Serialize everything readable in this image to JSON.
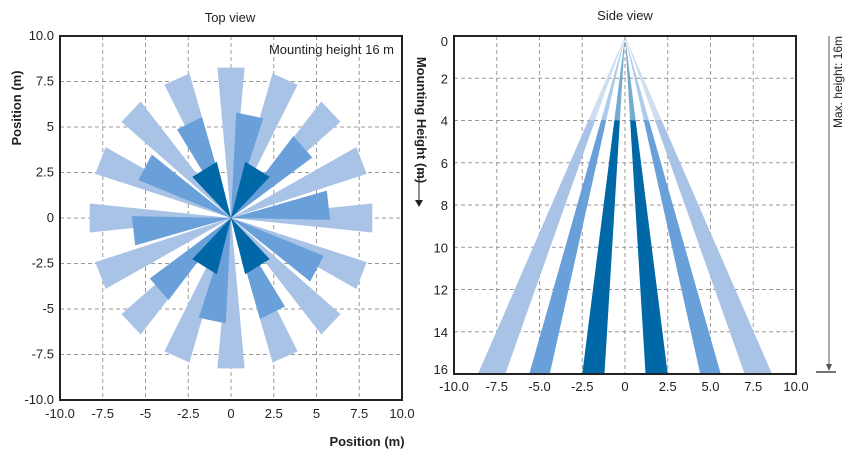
{
  "colors": {
    "light": "#a9c3e6",
    "medium": "#6aa0da",
    "dark": "#0068a6",
    "grid": "#9a9a9a",
    "frame": "#222222"
  },
  "chart_data": [
    {
      "type": "polar-beam-footprint",
      "title": "Top view",
      "xlabel": "Position (m)",
      "ylabel": "Position (m)",
      "xlim": [
        -10.0,
        10.0
      ],
      "ylim": [
        -10.0,
        10.0
      ],
      "xticks": [
        "-10.0",
        "-7.5",
        "-5",
        "-2.5",
        "0",
        "2.5",
        "5",
        "7.5",
        "10.0"
      ],
      "yticks": [
        "10.0",
        "7.5",
        "5",
        "2.5",
        "0",
        "-2.5",
        "-5",
        "-7.5",
        "-10.0"
      ],
      "grid": true,
      "annotation": "Mounting height 16 m",
      "series": [
        {
          "color_key": "light",
          "beams": [
            {
              "angle_deg": 0,
              "r_inner": 0,
              "r_outer": 8.3,
              "width_deg": 11
            },
            {
              "angle_deg": 22.5,
              "r_inner": 0,
              "r_outer": 8.3,
              "width_deg": 11
            },
            {
              "angle_deg": 45,
              "r_inner": 0,
              "r_outer": 8.3,
              "width_deg": 11
            },
            {
              "angle_deg": 67.5,
              "r_inner": 0,
              "r_outer": 8.3,
              "width_deg": 11
            },
            {
              "angle_deg": 90,
              "r_inner": 0,
              "r_outer": 8.3,
              "width_deg": 11
            },
            {
              "angle_deg": 112.5,
              "r_inner": 0,
              "r_outer": 8.3,
              "width_deg": 11
            },
            {
              "angle_deg": 135,
              "r_inner": 0,
              "r_outer": 8.3,
              "width_deg": 11
            },
            {
              "angle_deg": 157.5,
              "r_inner": 0,
              "r_outer": 8.3,
              "width_deg": 11
            },
            {
              "angle_deg": 180,
              "r_inner": 0,
              "r_outer": 8.3,
              "width_deg": 11
            },
            {
              "angle_deg": 202.5,
              "r_inner": 0,
              "r_outer": 8.3,
              "width_deg": 11
            },
            {
              "angle_deg": 225,
              "r_inner": 0,
              "r_outer": 8.3,
              "width_deg": 11
            },
            {
              "angle_deg": 247.5,
              "r_inner": 0,
              "r_outer": 8.3,
              "width_deg": 11
            },
            {
              "angle_deg": 270,
              "r_inner": 0,
              "r_outer": 8.3,
              "width_deg": 11
            },
            {
              "angle_deg": 292.5,
              "r_inner": 0,
              "r_outer": 8.3,
              "width_deg": 11
            },
            {
              "angle_deg": 315,
              "r_inner": 0,
              "r_outer": 8.3,
              "width_deg": 11
            },
            {
              "angle_deg": 337.5,
              "r_inner": 0,
              "r_outer": 8.3,
              "width_deg": 11
            }
          ]
        },
        {
          "color_key": "medium",
          "beams": [
            {
              "angle_deg": 11,
              "r_inner": 0,
              "r_outer": 5.8,
              "width_deg": 16
            },
            {
              "angle_deg": 47,
              "r_inner": 0,
              "r_outer": 5.8,
              "width_deg": 16
            },
            {
              "angle_deg": 83,
              "r_inner": 0,
              "r_outer": 5.8,
              "width_deg": 16
            },
            {
              "angle_deg": 119,
              "r_inner": 0,
              "r_outer": 5.8,
              "width_deg": 16
            },
            {
              "angle_deg": 155,
              "r_inner": 0,
              "r_outer": 5.8,
              "width_deg": 16
            },
            {
              "angle_deg": 191,
              "r_inner": 0,
              "r_outer": 5.8,
              "width_deg": 16
            },
            {
              "angle_deg": 227,
              "r_inner": 0,
              "r_outer": 5.8,
              "width_deg": 16
            },
            {
              "angle_deg": 263,
              "r_inner": 0,
              "r_outer": 5.8,
              "width_deg": 16
            },
            {
              "angle_deg": 299,
              "r_inner": 0,
              "r_outer": 5.8,
              "width_deg": 16
            },
            {
              "angle_deg": 335,
              "r_inner": 0,
              "r_outer": 5.8,
              "width_deg": 16
            }
          ]
        },
        {
          "color_key": "dark",
          "beams": [
            {
              "angle_deg": 30,
              "r_inner": 0,
              "r_outer": 3.2,
              "width_deg": 30
            },
            {
              "angle_deg": 150,
              "r_inner": 0,
              "r_outer": 3.2,
              "width_deg": 30
            },
            {
              "angle_deg": 210,
              "r_inner": 0,
              "r_outer": 3.2,
              "width_deg": 30
            },
            {
              "angle_deg": 330,
              "r_inner": 0,
              "r_outer": 3.2,
              "width_deg": 30
            }
          ]
        }
      ]
    },
    {
      "type": "beam-cross-section",
      "title": "Side view",
      "ylabel": "Mounting Height (m)",
      "right_label": "Max. height: 16m",
      "xlim": [
        -10.0,
        10.0
      ],
      "ylim": [
        0,
        16
      ],
      "y_inverted": true,
      "xticks": [
        "-10.0",
        "-7.5",
        "-5.0",
        "-2.5",
        "0",
        "2.5",
        "5.0",
        "7.5",
        "10.0"
      ],
      "yticks": [
        "0",
        "2",
        "4",
        "6",
        "8",
        "10",
        "12",
        "14",
        "16"
      ],
      "max_height": 16,
      "fade_until_height": 4,
      "apex": {
        "x": 0,
        "y": 0
      },
      "grid": true,
      "beams": [
        {
          "color_key": "light",
          "x_at_16": [
            -8.6,
            -7.0
          ]
        },
        {
          "color_key": "medium",
          "x_at_16": [
            -5.6,
            -4.4
          ]
        },
        {
          "color_key": "dark",
          "x_at_16": [
            -2.5,
            -1.2
          ]
        },
        {
          "color_key": "dark",
          "x_at_16": [
            1.2,
            2.5
          ]
        },
        {
          "color_key": "medium",
          "x_at_16": [
            4.4,
            5.6
          ]
        },
        {
          "color_key": "light",
          "x_at_16": [
            7.0,
            8.6
          ]
        }
      ]
    }
  ]
}
